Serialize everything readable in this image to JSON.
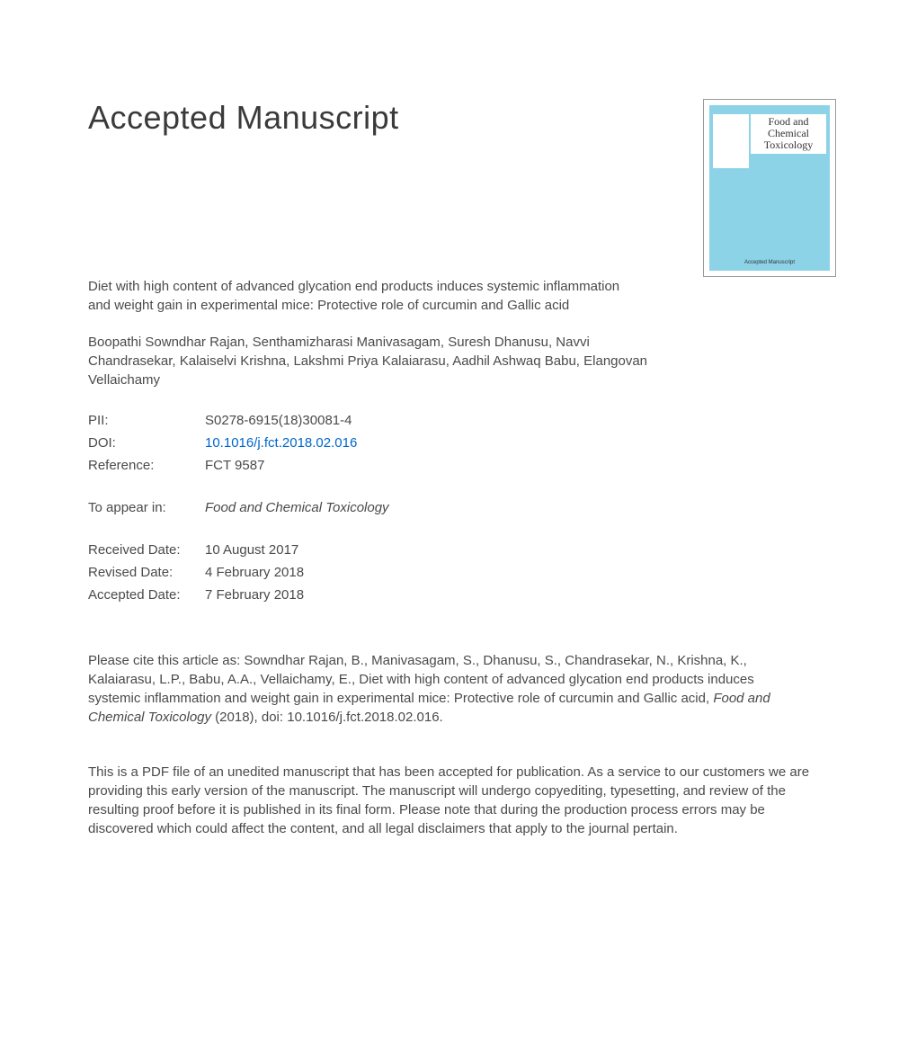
{
  "heading": "Accepted Manuscript",
  "cover": {
    "journal_title_line1": "Food and",
    "journal_title_line2": "Chemical",
    "journal_title_line3": "Toxicology",
    "footer": "Accepted Manuscript"
  },
  "article_title": "Diet with high content of advanced glycation end products induces systemic inflammation and weight gain in experimental mice: Protective role of curcumin and Gallic acid",
  "authors": "Boopathi Sowndhar Rajan, Senthamizharasi Manivasagam, Suresh Dhanusu, Navvi Chandrasekar, Kalaiselvi Krishna, Lakshmi Priya Kalaiarasu, Aadhil Ashwaq Babu, Elangovan Vellaichamy",
  "meta": {
    "pii_label": "PII:",
    "pii_value": "S0278-6915(18)30081-4",
    "doi_label": "DOI:",
    "doi_value": "10.1016/j.fct.2018.02.016",
    "ref_label": "Reference:",
    "ref_value": "FCT 9587",
    "appear_label": "To appear in:",
    "appear_value": "Food and Chemical Toxicology",
    "received_label": "Received Date:",
    "received_value": "10 August 2017",
    "revised_label": "Revised Date:",
    "revised_value": "4 February 2018",
    "accepted_label": "Accepted Date:",
    "accepted_value": "7 February 2018"
  },
  "citation_prefix": "Please cite this article as: Sowndhar Rajan, B., Manivasagam, S., Dhanusu, S., Chandrasekar, N., Krishna, K., Kalaiarasu, L.P., Babu, A.A., Vellaichamy, E., Diet with high content of advanced glycation end products induces systemic inflammation and weight gain in experimental mice: Protective role of curcumin and Gallic acid, ",
  "citation_journal": "Food and Chemical Toxicology",
  "citation_suffix": " (2018), doi: 10.1016/j.fct.2018.02.016.",
  "disclaimer": "This is a PDF file of an unedited manuscript that has been accepted for publication. As a service to our customers we are providing this early version of the manuscript. The manuscript will undergo copyediting, typesetting, and review of the resulting proof before it is published in its final form. Please note that during the production process errors may be discovered which could affect the content, and all legal disclaimers that apply to the journal pertain.",
  "colors": {
    "text": "#4a4a4a",
    "link": "#0066cc",
    "cover_bg": "#8cd3e8",
    "page_bg": "#ffffff"
  },
  "typography": {
    "heading_fontsize": 36,
    "body_fontsize": 15,
    "font_family": "Arial, Helvetica, sans-serif"
  }
}
